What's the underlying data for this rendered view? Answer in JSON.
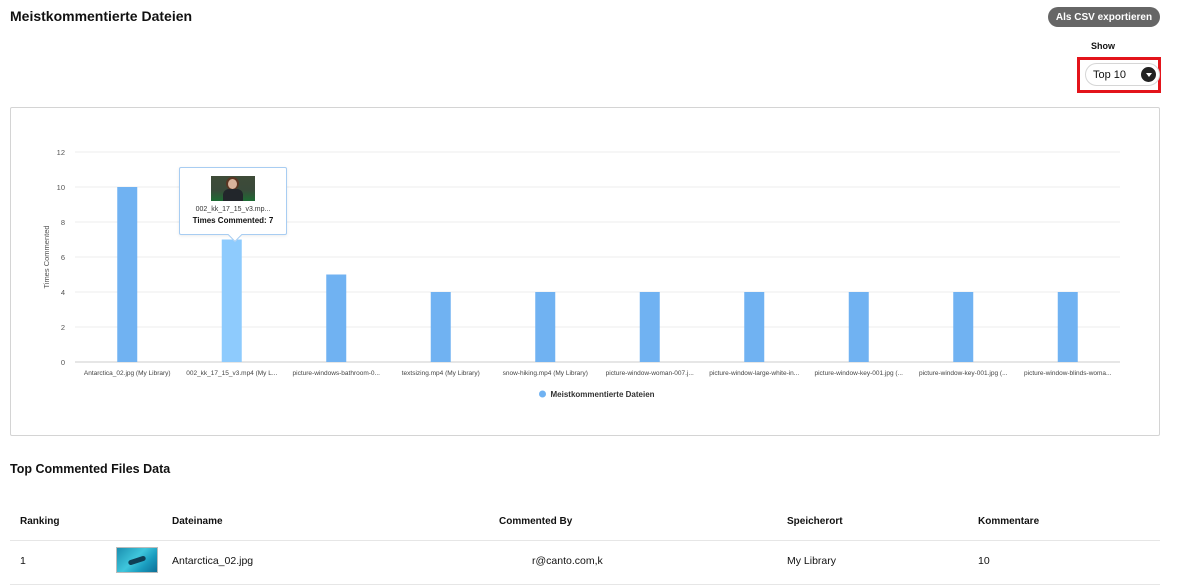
{
  "header": {
    "title": "Meistkommentierte Dateien",
    "export_label": "Als CSV exportieren",
    "show_label": "Show",
    "show_value": "Top 10"
  },
  "colors": {
    "bar": "#70b2f2",
    "bar_hover": "#8ecbfd",
    "highlight": "#e3141b"
  },
  "chart_data": {
    "type": "bar",
    "categories": [
      "Antarctica_02.jpg (My Library)",
      "002_kk_17_15_v3.mp4 (My L...",
      "picture-windows-bathroom-0...",
      "textsizing.mp4 (My Library)",
      "snow-hiking.mp4 (My Library)",
      "picture-window-woman-007.j...",
      "picture-window-large-white-in...",
      "picture-window-key-001.jpg (...",
      "picture-window-key-001.jpg (...",
      "picture-window-blinds-woma..."
    ],
    "series": [
      {
        "name": "Meistkommentierte Dateien",
        "values": [
          10,
          7,
          5,
          4,
          4,
          4,
          4,
          4,
          4,
          4
        ]
      }
    ],
    "ylabel": "Times Commented",
    "yticks": [
      0,
      2,
      4,
      6,
      8,
      10,
      12
    ],
    "ylim": [
      0,
      12
    ],
    "grid": true,
    "legend": "bottom-center",
    "highlighted_index": 1
  },
  "tooltip": {
    "name": "002_kk_17_15_v3.mp...",
    "value": "Times Commented: 7"
  },
  "table": {
    "title": "Top Commented Files Data",
    "headers": {
      "ranking": "Ranking",
      "dateiname": "Dateiname",
      "commented_by": "Commented By",
      "speicherort": "Speicherort",
      "kommentare": "Kommentare"
    },
    "rows": [
      {
        "ranking": "1",
        "dateiname": "Antarctica_02.jpg",
        "commented_by": "r@canto.com,k",
        "speicherort": "My Library",
        "kommentare": "10"
      }
    ]
  }
}
